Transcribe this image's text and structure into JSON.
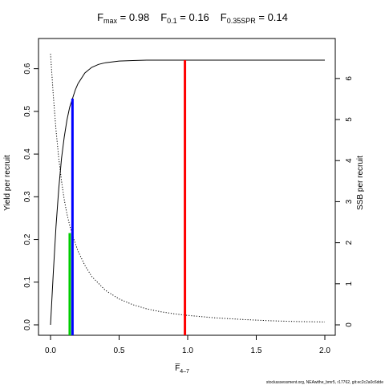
{
  "title": {
    "parts": [
      {
        "main": "F",
        "sub": "max",
        "rest": " = 0.98"
      },
      {
        "main": "F",
        "sub": "0.1",
        "rest": " = 0.16"
      },
      {
        "main": "F",
        "sub": "0.35SPR",
        "rest": " = 0.14"
      }
    ]
  },
  "footer": "stockassessment.org, NEAwithe_bmr5, r17762, git:ec2c2a0c6dde",
  "chart_data": {
    "type": "line",
    "xlabel": "F̅",
    "xlabel_sub": "4–7",
    "ylabel_left": "Yield per recruit",
    "ylabel_right": "SSB per recruit",
    "xlim": [
      0,
      2
    ],
    "ylim_left": [
      0,
      0.62
    ],
    "ylim_right": [
      0,
      6.7
    ],
    "x_ticks": [
      "0.0",
      "0.5",
      "1.0",
      "1.5",
      "2.0"
    ],
    "x_tick_values": [
      0,
      0.5,
      1.0,
      1.5,
      2.0
    ],
    "y_left_ticks": [
      "0.0",
      "0.1",
      "0.2",
      "0.3",
      "0.4",
      "0.5",
      "0.6"
    ],
    "y_left_tick_values": [
      0,
      0.1,
      0.2,
      0.3,
      0.4,
      0.5,
      0.6
    ],
    "y_right_ticks": [
      "0",
      "1",
      "2",
      "3",
      "4",
      "5",
      "6"
    ],
    "y_right_tick_values": [
      0,
      1,
      2,
      3,
      4,
      5,
      6
    ],
    "series": [
      {
        "style": "solid",
        "axis": "left",
        "x": [
          0.0,
          0.02,
          0.04,
          0.06,
          0.08,
          0.1,
          0.12,
          0.14,
          0.16,
          0.18,
          0.2,
          0.25,
          0.3,
          0.35,
          0.4,
          0.5,
          0.6,
          0.7,
          0.8,
          0.9,
          1.0,
          1.2,
          1.4,
          1.6,
          1.8,
          2.0
        ],
        "y": [
          0.0,
          0.12,
          0.23,
          0.32,
          0.39,
          0.44,
          0.48,
          0.51,
          0.53,
          0.55,
          0.565,
          0.59,
          0.603,
          0.61,
          0.614,
          0.618,
          0.619,
          0.62,
          0.62,
          0.62,
          0.62,
          0.62,
          0.62,
          0.62,
          0.62,
          0.62
        ]
      },
      {
        "style": "dotted",
        "axis": "right",
        "x": [
          0.0,
          0.02,
          0.04,
          0.06,
          0.08,
          0.1,
          0.12,
          0.14,
          0.16,
          0.2,
          0.25,
          0.3,
          0.4,
          0.5,
          0.6,
          0.7,
          0.8,
          0.9,
          1.0,
          1.2,
          1.4,
          1.6,
          1.8,
          2.0
        ],
        "y": [
          6.6,
          5.6,
          4.75,
          4.05,
          3.5,
          3.05,
          2.7,
          2.42,
          2.18,
          1.8,
          1.45,
          1.18,
          0.84,
          0.63,
          0.49,
          0.39,
          0.32,
          0.27,
          0.23,
          0.17,
          0.13,
          0.1,
          0.08,
          0.07
        ]
      }
    ],
    "reference_lines": [
      {
        "color": "#0000ff",
        "x": 0.16,
        "y_top": 0.53
      },
      {
        "color": "#ff0000",
        "x": 0.98,
        "y_top": 0.62
      },
      {
        "color": "#00cd00",
        "x": 0.14,
        "y_top": 0.215
      }
    ]
  }
}
